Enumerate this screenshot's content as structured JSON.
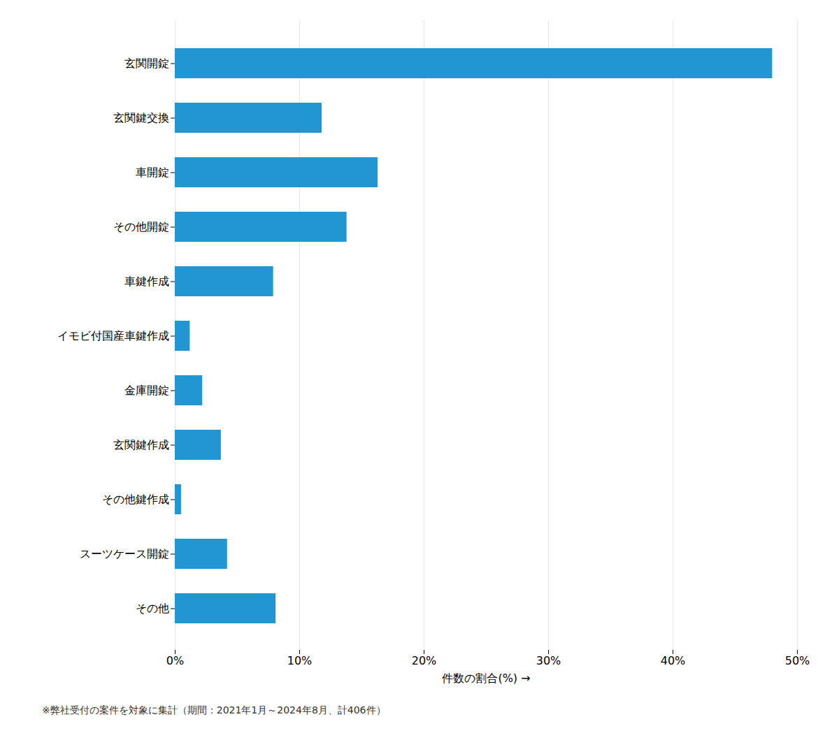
{
  "chart_data": {
    "type": "bar",
    "orientation": "horizontal",
    "categories": [
      "玄関開錠",
      "玄関鍵交換",
      "車開錠",
      "その他開錠",
      "車鍵作成",
      "イモビ付国産車鍵作成",
      "金庫開錠",
      "玄関鍵作成",
      "その他鍵作成",
      "スーツケース開錠",
      "その他"
    ],
    "values": [
      48.0,
      11.8,
      16.3,
      13.8,
      7.9,
      1.2,
      2.2,
      3.7,
      0.5,
      4.2,
      8.1
    ],
    "color": "#2196D3",
    "xlabel": "件数の割合(%)",
    "xlim": [
      0,
      50
    ],
    "xticks": [
      {
        "value": 0,
        "label": "0%"
      },
      {
        "value": 10,
        "label": "10%"
      },
      {
        "value": 20,
        "label": "20%"
      },
      {
        "value": 30,
        "label": "30%"
      },
      {
        "value": 40,
        "label": "40%"
      },
      {
        "value": 50,
        "label": "50%"
      }
    ],
    "grid": true,
    "caption": "※弊社受付の案件を対象に集計（期間：2021年1月～2024年8月、計406件）"
  }
}
